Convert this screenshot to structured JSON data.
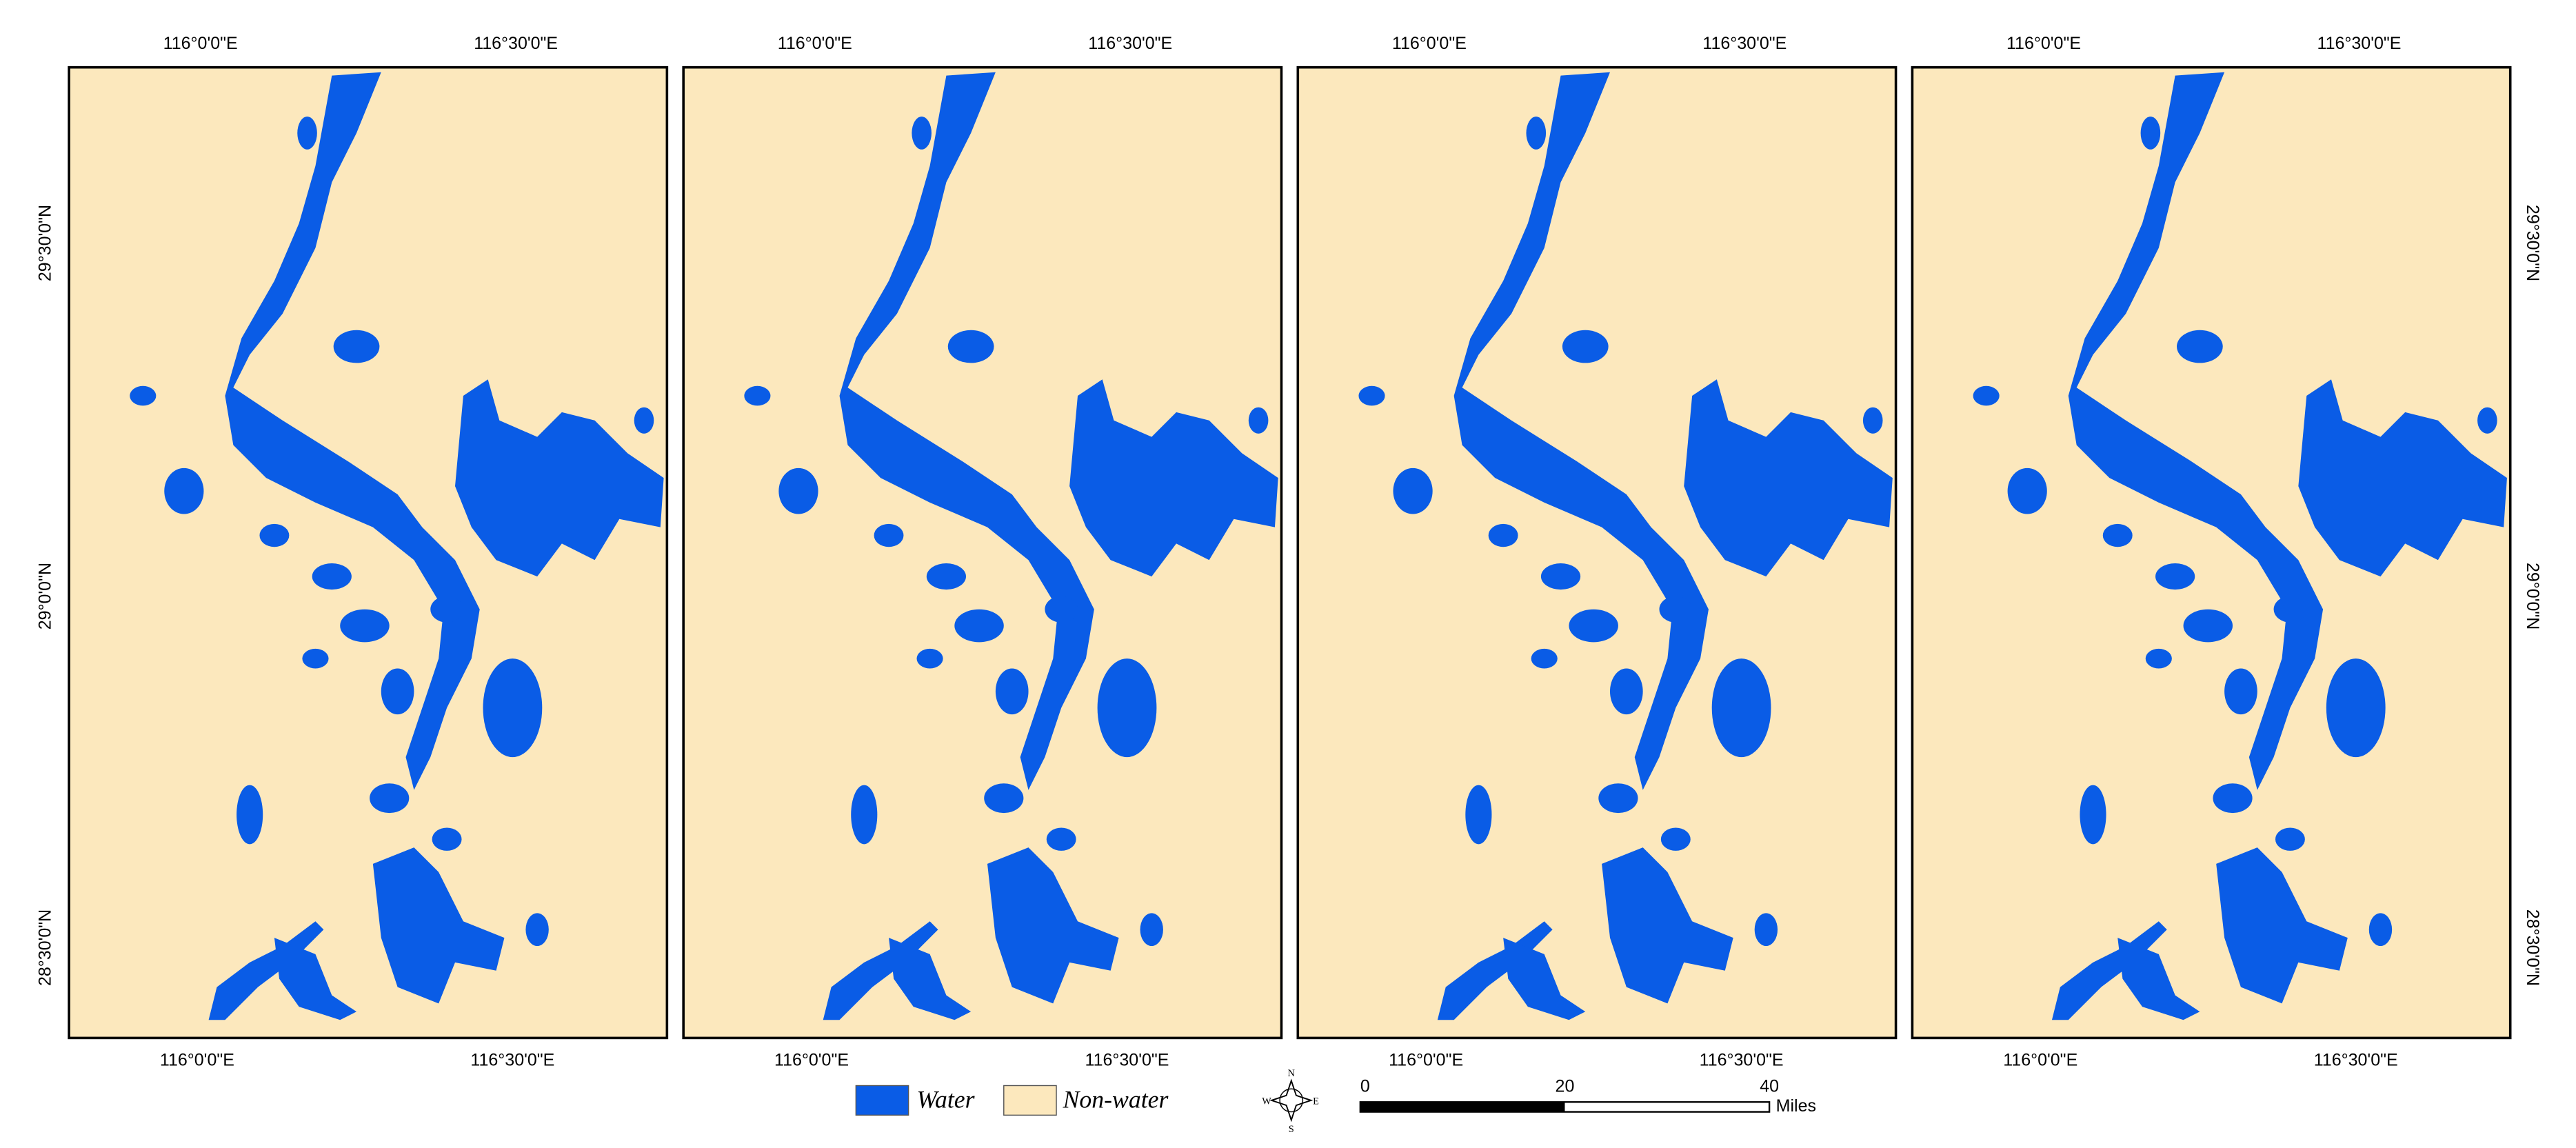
{
  "panels": [
    {
      "top_labels": [
        "116°0'0\"E",
        "116°30'0\"E"
      ],
      "bottom_labels": [
        "116°0'0\"E",
        "116°30'0\"E"
      ],
      "left_labels": [
        "29°30'0\"N",
        "29°0'0\"N",
        "28°30'0\"N"
      ]
    },
    {
      "top_labels": [
        "116°0'0\"E",
        "116°30'0\"E"
      ],
      "bottom_labels": [
        "116°0'0\"E",
        "116°30'0\"E"
      ]
    },
    {
      "top_labels": [
        "116°0'0\"E",
        "116°30'0\"E"
      ],
      "bottom_labels": [
        "116°0'0\"E",
        "116°30'0\"E"
      ]
    },
    {
      "top_labels": [
        "116°0'0\"E",
        "116°30'0\"E"
      ],
      "bottom_labels": [
        "116°0'0\"E",
        "116°30'0\"E"
      ],
      "right_labels": [
        "29°30'0\"N",
        "29°0'0\"N",
        "28°30'0\"N"
      ]
    }
  ],
  "legend": {
    "items": [
      {
        "label": "Water",
        "color": "#0a5ce6"
      },
      {
        "label": "Non-water",
        "color": "#fce8bd"
      }
    ]
  },
  "compass": {
    "n": "N",
    "e": "E",
    "s": "S",
    "w": "W"
  },
  "scale_bar": {
    "ticks": [
      0,
      20,
      40
    ],
    "unit": "Miles"
  }
}
